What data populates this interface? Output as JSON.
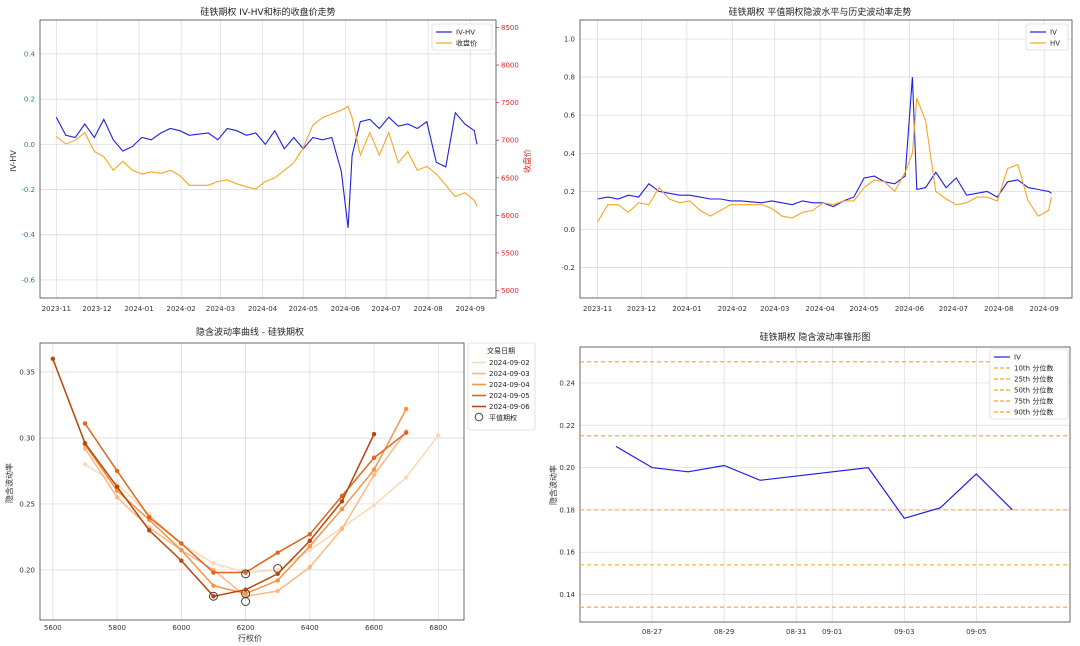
{
  "colors": {
    "blue": "#1f1fe0",
    "orange": "#f5a623",
    "red_axis": "#d62728",
    "grid": "#d8d8d8",
    "spine": "#444444",
    "date_palette": [
      "#fdd9b5",
      "#fdb882",
      "#f59346",
      "#e0651c",
      "#b8450b"
    ],
    "pct_line": "#f5a623"
  },
  "chart_data": [
    {
      "type": "line",
      "title": "硅铁期权 IV-HV和标的收盘价走势",
      "ylabel": "IV-HV",
      "y2label": "收盘价",
      "x": [
        "2023-11-01",
        "2023-11-08",
        "2023-11-15",
        "2023-11-22",
        "2023-11-29",
        "2023-12-06",
        "2023-12-13",
        "2023-12-20",
        "2023-12-27",
        "2024-01-03",
        "2024-01-10",
        "2024-01-17",
        "2024-01-24",
        "2024-01-31",
        "2024-02-07",
        "2024-02-21",
        "2024-02-28",
        "2024-03-06",
        "2024-03-13",
        "2024-03-20",
        "2024-03-27",
        "2024-04-03",
        "2024-04-10",
        "2024-04-17",
        "2024-04-24",
        "2024-05-01",
        "2024-05-08",
        "2024-05-15",
        "2024-05-22",
        "2024-05-29",
        "2024-06-03",
        "2024-06-06",
        "2024-06-12",
        "2024-06-19",
        "2024-06-26",
        "2024-07-03",
        "2024-07-10",
        "2024-07-17",
        "2024-07-24",
        "2024-07-31",
        "2024-08-07",
        "2024-08-14",
        "2024-08-21",
        "2024-08-28",
        "2024-09-04",
        "2024-09-06"
      ],
      "series": [
        {
          "name": "IV-HV",
          "axis": "left",
          "values": [
            0.12,
            0.04,
            0.03,
            0.09,
            0.03,
            0.11,
            0.02,
            -0.03,
            -0.01,
            0.03,
            0.02,
            0.05,
            0.07,
            0.06,
            0.04,
            0.05,
            0.02,
            0.07,
            0.06,
            0.04,
            0.05,
            0.0,
            0.06,
            -0.02,
            0.03,
            -0.02,
            0.03,
            0.02,
            0.03,
            -0.12,
            -0.37,
            -0.05,
            0.1,
            0.11,
            0.07,
            0.12,
            0.08,
            0.09,
            0.07,
            0.1,
            -0.08,
            -0.1,
            0.14,
            0.09,
            0.06,
            0.0
          ]
        },
        {
          "name": "收盘价",
          "axis": "right",
          "values": [
            7050,
            6950,
            7000,
            7100,
            6850,
            6780,
            6600,
            6720,
            6600,
            6550,
            6580,
            6560,
            6600,
            6530,
            6400,
            6400,
            6450,
            6470,
            6420,
            6380,
            6350,
            6450,
            6500,
            6600,
            6700,
            6900,
            7200,
            7300,
            7350,
            7400,
            7450,
            7300,
            6800,
            7100,
            6800,
            7100,
            6700,
            6850,
            6600,
            6650,
            6550,
            6400,
            6250,
            6300,
            6200,
            6120
          ]
        }
      ],
      "ylim": [
        -0.68,
        0.55
      ],
      "y2lim": [
        4900,
        8600
      ],
      "yticks": [
        "-0.6",
        "-0.4",
        "-0.2",
        "0.0",
        "0.2",
        "0.4"
      ],
      "y2ticks": [
        "5000",
        "5500",
        "6000",
        "6500",
        "7000",
        "7500",
        "8000",
        "8500"
      ],
      "xticks": [
        "2023-11",
        "2023-12",
        "2024-01",
        "2024-02",
        "2024-03",
        "2024-04",
        "2024-05",
        "2024-06",
        "2024-07",
        "2024-08",
        "2024-09"
      ],
      "legend": "top-right",
      "grid": true
    },
    {
      "type": "line",
      "title": "硅铁期权 平值期权隐波水平与历史波动率走势",
      "x": [
        "2023-11-01",
        "2023-11-08",
        "2023-11-15",
        "2023-11-22",
        "2023-11-29",
        "2023-12-06",
        "2023-12-13",
        "2023-12-20",
        "2023-12-27",
        "2024-01-03",
        "2024-01-10",
        "2024-01-17",
        "2024-01-24",
        "2024-01-31",
        "2024-02-07",
        "2024-02-21",
        "2024-02-28",
        "2024-03-06",
        "2024-03-13",
        "2024-03-20",
        "2024-03-27",
        "2024-04-03",
        "2024-04-10",
        "2024-04-17",
        "2024-04-24",
        "2024-05-01",
        "2024-05-08",
        "2024-05-15",
        "2024-05-22",
        "2024-05-29",
        "2024-06-03",
        "2024-06-06",
        "2024-06-12",
        "2024-06-19",
        "2024-06-26",
        "2024-07-03",
        "2024-07-10",
        "2024-07-17",
        "2024-07-24",
        "2024-07-31",
        "2024-08-07",
        "2024-08-14",
        "2024-08-21",
        "2024-08-28",
        "2024-09-04",
        "2024-09-06"
      ],
      "series": [
        {
          "name": "IV",
          "values": [
            0.16,
            0.17,
            0.16,
            0.18,
            0.17,
            0.24,
            0.2,
            0.19,
            0.18,
            0.18,
            0.17,
            0.16,
            0.16,
            0.15,
            0.15,
            0.14,
            0.15,
            0.14,
            0.13,
            0.15,
            0.14,
            0.14,
            0.12,
            0.15,
            0.17,
            0.27,
            0.28,
            0.25,
            0.24,
            0.28,
            0.8,
            0.21,
            0.22,
            0.3,
            0.22,
            0.27,
            0.18,
            0.19,
            0.2,
            0.17,
            0.25,
            0.26,
            0.22,
            0.21,
            0.2,
            0.19
          ]
        },
        {
          "name": "HV",
          "values": [
            0.04,
            0.13,
            0.13,
            0.09,
            0.14,
            0.13,
            0.22,
            0.16,
            0.14,
            0.15,
            0.1,
            0.07,
            0.1,
            0.13,
            0.13,
            0.13,
            0.11,
            0.07,
            0.06,
            0.09,
            0.1,
            0.14,
            0.13,
            0.15,
            0.15,
            0.22,
            0.26,
            0.25,
            0.2,
            0.3,
            0.4,
            0.69,
            0.57,
            0.2,
            0.16,
            0.13,
            0.14,
            0.17,
            0.17,
            0.15,
            0.32,
            0.34,
            0.15,
            0.07,
            0.1,
            0.17
          ]
        }
      ],
      "ylim": [
        -0.36,
        1.1
      ],
      "yticks": [
        "-0.2",
        "0.0",
        "0.2",
        "0.4",
        "0.6",
        "0.8",
        "1.0"
      ],
      "xticks": [
        "2023-11",
        "2023-12",
        "2024-01",
        "2024-02",
        "2024-03",
        "2024-04",
        "2024-05",
        "2024-06",
        "2024-07",
        "2024-08",
        "2024-09"
      ],
      "legend": "top-right",
      "grid": true
    },
    {
      "type": "line",
      "title": "隐含波动率曲线 - 硅铁期权",
      "xlabel": "行权价",
      "ylabel": "隐含波动率",
      "legend_title": "交易日期",
      "legend_marker_label": "平值期权",
      "xlim": [
        5560,
        6880
      ],
      "ylim": [
        0.162,
        0.372
      ],
      "xticks": [
        "5600",
        "5800",
        "6000",
        "6200",
        "6400",
        "6600",
        "6800"
      ],
      "yticks": [
        "0.20",
        "0.25",
        "0.30",
        "0.35"
      ],
      "series": [
        {
          "name": "2024-09-02",
          "x": [
            5700,
            5800,
            5900,
            6000,
            6100,
            6200,
            6300,
            6400,
            6500,
            6600,
            6700,
            6800
          ],
          "values": [
            0.28,
            0.265,
            0.242,
            0.22,
            0.205,
            0.198,
            0.2,
            0.215,
            0.232,
            0.249,
            0.27,
            0.302
          ],
          "atm": [
            6300,
            0.201
          ]
        },
        {
          "name": "2024-09-03",
          "x": [
            5700,
            5800,
            5900,
            6000,
            6100,
            6200,
            6300,
            6400,
            6500,
            6600,
            6700
          ],
          "values": [
            0.292,
            0.255,
            0.232,
            0.215,
            0.2,
            0.18,
            0.184,
            0.202,
            0.231,
            0.272,
            0.305
          ],
          "atm": [
            6200,
            0.176
          ]
        },
        {
          "name": "2024-09-04",
          "x": [
            5700,
            5800,
            5900,
            6000,
            6100,
            6200,
            6300,
            6400,
            6500,
            6600,
            6700
          ],
          "values": [
            0.295,
            0.26,
            0.238,
            0.215,
            0.188,
            0.182,
            0.192,
            0.218,
            0.246,
            0.276,
            0.322
          ],
          "atm": [
            6200,
            0.182
          ]
        },
        {
          "name": "2024-09-05",
          "x": [
            5700,
            5800,
            5900,
            6000,
            6100,
            6200,
            6300,
            6400,
            6500,
            6600,
            6700
          ],
          "values": [
            0.311,
            0.275,
            0.24,
            0.22,
            0.198,
            0.198,
            0.213,
            0.227,
            0.256,
            0.285,
            0.304
          ],
          "atm": [
            6200,
            0.197
          ]
        },
        {
          "name": "2024-09-06",
          "x": [
            5600,
            5700,
            5800,
            5900,
            6000,
            6100,
            6200,
            6300,
            6400,
            6500,
            6600
          ],
          "values": [
            0.36,
            0.296,
            0.263,
            0.23,
            0.207,
            0.18,
            0.185,
            0.197,
            0.222,
            0.252,
            0.303
          ],
          "atm": [
            6100,
            0.18
          ]
        }
      ],
      "legend": "right"
    },
    {
      "type": "line",
      "title": "硅铁期权 隐含波动率锥形图",
      "ylabel": "隐含波动率",
      "x": [
        "08-26",
        "08-27",
        "08-28",
        "08-29",
        "08-30",
        "09-02",
        "09-03",
        "09-04",
        "09-05",
        "09-06"
      ],
      "series": [
        {
          "name": "IV",
          "values": [
            0.21,
            0.2,
            0.198,
            0.201,
            0.194,
            0.2,
            0.176,
            0.181,
            0.197,
            0.18
          ]
        }
      ],
      "percentiles": [
        {
          "name": "10th 分位数",
          "value": 0.134
        },
        {
          "name": "25th 分位数",
          "value": 0.154
        },
        {
          "name": "50th 分位数",
          "value": 0.18
        },
        {
          "name": "75th 分位数",
          "value": 0.215
        },
        {
          "name": "90th 分位数",
          "value": 0.25
        }
      ],
      "ylim": [
        0.127,
        0.257
      ],
      "yticks": [
        "0.14",
        "0.16",
        "0.18",
        "0.20",
        "0.22",
        "0.24"
      ],
      "xticks": [
        "08-27",
        "08-29",
        "08-31",
        "09-01",
        "09-03",
        "09-05"
      ],
      "legend": "top-right",
      "grid": true
    }
  ]
}
